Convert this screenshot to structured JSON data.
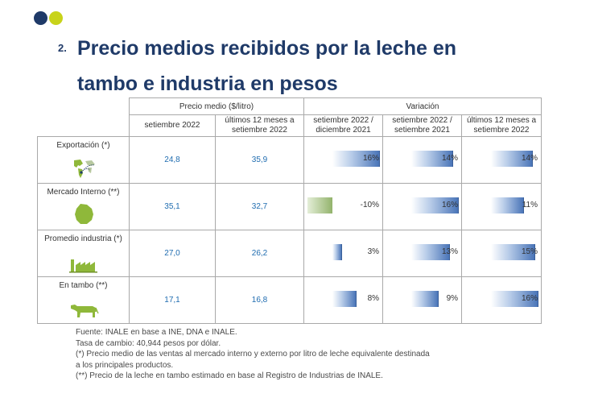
{
  "slide": {
    "number": "2.",
    "title_line1": "Precio medios recibidos por la leche en",
    "title_line2": "tambo e industria en pesos"
  },
  "colors": {
    "navy": "#1f3a68",
    "lime": "#c8d31a",
    "value_blue": "#1f6cb0",
    "bar_blue": "#4a75b8",
    "bar_green": "#93b36c"
  },
  "table": {
    "group_headers": {
      "price": "Precio medio ($/litro)",
      "variation": "Variación"
    },
    "col_headers": {
      "price_sep": "setiembre 2022",
      "price_12m_l1": "últimos 12 meses a",
      "price_12m_l2": "setiembre 2022",
      "var_dec_l1": "setiembre 2022 /",
      "var_dec_l2": "diciembre 2021",
      "var_yoy_l1": "setiembre 2022 /",
      "var_yoy_l2": "setiembre 2021",
      "var_12m_l1": "últimos 12 meses a",
      "var_12m_l2": "setiembre 2022"
    },
    "rows": [
      {
        "label": "Exportación (*)",
        "icon": "world-map-icon",
        "price_sep": "24,8",
        "price_12m": "35,9",
        "var_dec": "16%",
        "var_yoy": "14%",
        "var_12m": "14%"
      },
      {
        "label": "Mercado Interno (**)",
        "icon": "uruguay-map-icon",
        "price_sep": "35,1",
        "price_12m": "32,7",
        "var_dec": "-10%",
        "var_yoy": "16%",
        "var_12m": "11%"
      },
      {
        "label": "Promedio industria (*)",
        "icon": "factory-icon",
        "price_sep": "27,0",
        "price_12m": "26,2",
        "var_dec": "3%",
        "var_yoy": "13%",
        "var_12m": "15%"
      },
      {
        "label": "En tambo (**)",
        "icon": "cow-icon",
        "price_sep": "17,1",
        "price_12m": "16,8",
        "var_dec": "8%",
        "var_yoy": "9%",
        "var_12m": "16%"
      }
    ],
    "bar_values": [
      {
        "var_dec": 16,
        "var_yoy": 14,
        "var_12m": 14
      },
      {
        "var_dec": -10,
        "var_yoy": 16,
        "var_12m": 11
      },
      {
        "var_dec": 3,
        "var_yoy": 13,
        "var_12m": 15
      },
      {
        "var_dec": 8,
        "var_yoy": 9,
        "var_12m": 16
      }
    ]
  },
  "notes": {
    "line1": "Fuente: INALE en base a INE, DNA e INALE.",
    "line2": "Tasa de cambio: 40,944 pesos por dólar.",
    "line3": "(*) Precio medio de las ventas al mercado interno y externo por litro de leche equivalente destinada",
    "line4": "a los principales productos.",
    "line5": "(**) Precio de la leche en tambo estimado en base al Registro de Industrias de INALE."
  }
}
